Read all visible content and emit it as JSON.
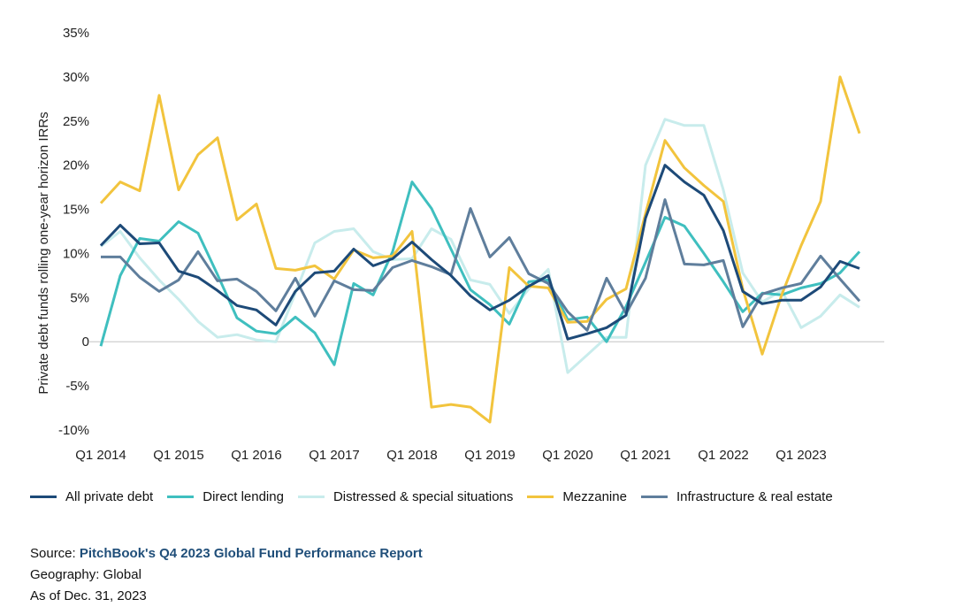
{
  "chart_data": {
    "type": "line",
    "title": "",
    "xlabel": "",
    "ylabel": "Private debt funds rolling one-year horizon IRRs",
    "ylim": [
      -10,
      35
    ],
    "y_ticks": [
      -10,
      -5,
      0,
      5,
      10,
      15,
      20,
      25,
      30,
      35
    ],
    "y_tick_labels": [
      "-10%",
      "-5%",
      "0",
      "5%",
      "10%",
      "15%",
      "20%",
      "25%",
      "30%",
      "35%"
    ],
    "categories": [
      "Q1 2014",
      "Q2 2014",
      "Q3 2014",
      "Q4 2014",
      "Q1 2015",
      "Q2 2015",
      "Q3 2015",
      "Q4 2015",
      "Q1 2016",
      "Q2 2016",
      "Q3 2016",
      "Q4 2016",
      "Q1 2017",
      "Q2 2017",
      "Q3 2017",
      "Q4 2017",
      "Q1 2018",
      "Q2 2018",
      "Q3 2018",
      "Q4 2018",
      "Q1 2019",
      "Q2 2019",
      "Q3 2019",
      "Q4 2019",
      "Q1 2020",
      "Q2 2020",
      "Q3 2020",
      "Q4 2020",
      "Q1 2021",
      "Q2 2021",
      "Q3 2021",
      "Q4 2021",
      "Q1 2022",
      "Q2 2022",
      "Q3 2022",
      "Q4 2022",
      "Q1 2023",
      "Q2 2023",
      "Q3 2023",
      "Q4 2023"
    ],
    "x_tick_labels": [
      "Q1 2014",
      "Q1 2015",
      "Q1 2016",
      "Q1 2017",
      "Q1 2018",
      "Q1 2019",
      "Q1 2020",
      "Q1 2021",
      "Q1 2022",
      "Q1 2023"
    ],
    "series": [
      {
        "name": "Distressed & special situations",
        "color": "#c8ecec",
        "values": [
          10.8,
          12.5,
          9.5,
          7.0,
          4.8,
          2.3,
          0.5,
          0.8,
          0.2,
          0.0,
          5.5,
          11.2,
          12.5,
          12.8,
          10.2,
          9.3,
          9.4,
          12.8,
          11.6,
          7.0,
          6.5,
          3.2,
          6.0,
          8.2,
          -3.5,
          -1.5,
          0.5,
          0.5,
          20.0,
          25.2,
          24.5,
          24.5,
          17.2,
          7.8,
          4.5,
          5.8,
          1.6,
          2.9,
          5.3,
          3.9
        ]
      },
      {
        "name": "Direct lending",
        "color": "#3fbfbf",
        "values": [
          -0.5,
          7.5,
          11.7,
          11.4,
          13.6,
          12.3,
          7.6,
          2.7,
          1.2,
          0.9,
          2.8,
          1.0,
          -2.6,
          6.6,
          5.3,
          10.2,
          18.1,
          15.1,
          10.5,
          5.9,
          4.2,
          2.0,
          6.8,
          7.0,
          2.5,
          2.8,
          0.0,
          4.0,
          9.0,
          14.1,
          13.1,
          10.0,
          6.8,
          3.4,
          5.5,
          5.3,
          6.1,
          6.6,
          7.8,
          10.2
        ]
      },
      {
        "name": "Mezzanine",
        "color": "#f2c43d",
        "values": [
          15.7,
          18.1,
          17.1,
          27.9,
          17.2,
          21.2,
          23.1,
          13.8,
          15.6,
          8.3,
          8.1,
          8.6,
          7.1,
          10.4,
          9.5,
          9.7,
          12.5,
          -7.4,
          -7.1,
          -7.4,
          -9.1,
          8.4,
          6.3,
          6.1,
          2.2,
          2.3,
          4.8,
          6.0,
          14.5,
          22.8,
          19.7,
          17.7,
          15.9,
          6.0,
          -1.4,
          5.3,
          10.9,
          15.9,
          30.0,
          23.6
        ]
      },
      {
        "name": "Infrastructure & real estate",
        "color": "#5f7e9c",
        "values": [
          9.6,
          9.6,
          7.3,
          5.7,
          7.0,
          10.2,
          6.9,
          7.1,
          5.7,
          3.5,
          7.2,
          2.9,
          6.9,
          5.9,
          5.8,
          8.4,
          9.2,
          8.5,
          7.6,
          15.1,
          9.6,
          11.8,
          7.7,
          6.6,
          3.4,
          1.3,
          7.2,
          3.2,
          7.2,
          16.1,
          8.8,
          8.7,
          9.2,
          1.7,
          5.4,
          6.1,
          6.6,
          9.7,
          7.1,
          4.6
        ]
      },
      {
        "name": "All private debt",
        "color": "#1d4a78",
        "values": [
          10.9,
          13.2,
          11.1,
          11.2,
          8.0,
          7.3,
          5.8,
          4.1,
          3.6,
          1.9,
          5.7,
          7.8,
          8.0,
          10.5,
          8.6,
          9.4,
          11.3,
          9.3,
          7.5,
          5.2,
          3.6,
          4.7,
          6.3,
          7.5,
          0.3,
          0.9,
          1.6,
          3.0,
          14.0,
          20.0,
          18.1,
          16.6,
          12.6,
          5.7,
          4.3,
          4.7,
          4.7,
          6.2,
          9.1,
          8.3
        ]
      }
    ],
    "legend_position": "bottom",
    "legend_order": [
      "All private debt",
      "Direct lending",
      "Distressed & special situations",
      "Mezzanine",
      "Infrastructure & real estate"
    ]
  },
  "footer": {
    "source_prefix": "Source: ",
    "source_link": "PitchBook's Q4 2023 Global Fund Performance Report",
    "geography": "Geography: Global",
    "as_of": "As of Dec. 31, 2023"
  }
}
